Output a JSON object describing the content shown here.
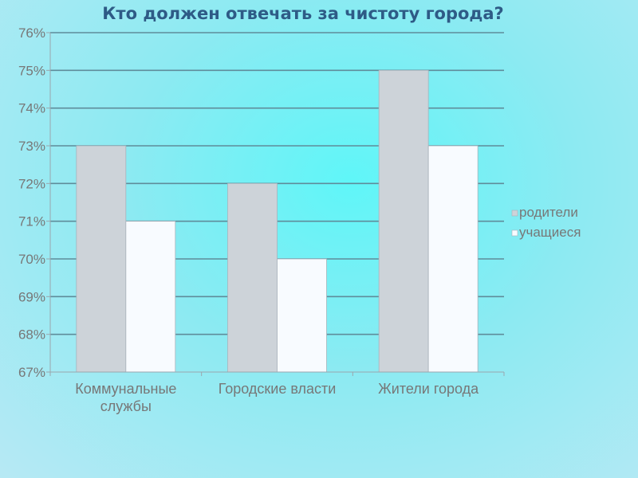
{
  "chart_data": {
    "type": "bar",
    "title": "Кто должен отвечать за чистоту города?",
    "categories": [
      [
        "Коммунальные",
        "службы"
      ],
      [
        "Городские власти"
      ],
      [
        "Жители города"
      ]
    ],
    "series": [
      {
        "name": "родители",
        "values": [
          73,
          72,
          75
        ],
        "color": "#cdd3d9"
      },
      {
        "name": "учащиеся",
        "values": [
          71,
          70,
          73
        ],
        "color": "#f8fbff"
      }
    ],
    "ylim": [
      67,
      76
    ],
    "yticks": [
      "67%",
      "68%",
      "69%",
      "70%",
      "71%",
      "72%",
      "73%",
      "74%",
      "75%",
      "76%"
    ],
    "grid": true,
    "legend_position": "right",
    "colors": {
      "grid": "#5f8c9a",
      "axis": "#9aa6ad",
      "bar_border": "#a9b3bb",
      "title": "#2e5b86"
    }
  }
}
